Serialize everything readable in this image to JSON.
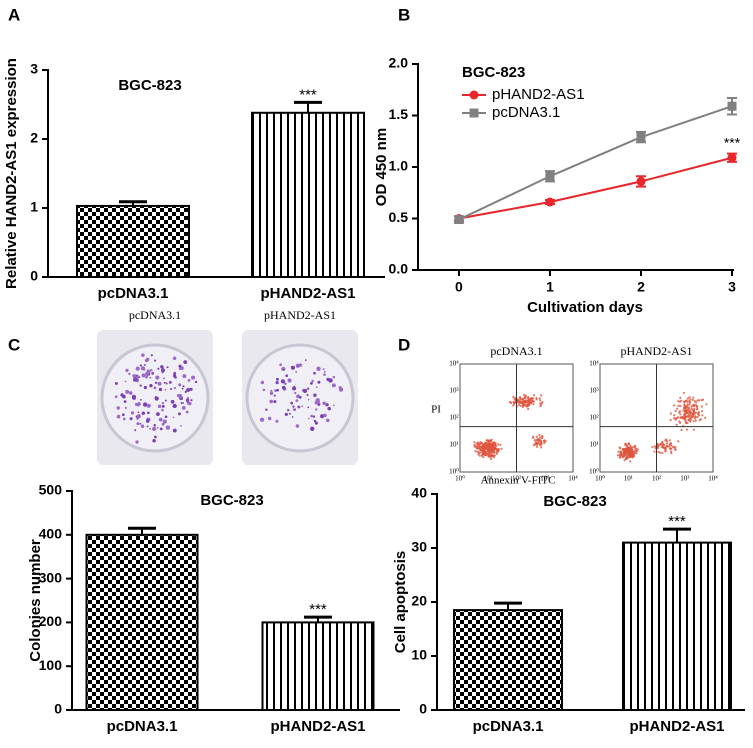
{
  "panel_labels": [
    "A",
    "B",
    "C",
    "D"
  ],
  "chart_data": [
    {
      "type": "bar",
      "title": "BGC-823",
      "y_label": "Relative HAND2-AS1 expression",
      "categories": [
        "pcDNA3.1",
        "pHAND2-AS1"
      ],
      "values": [
        1.03,
        2.38
      ],
      "errors": [
        0.06,
        0.15
      ],
      "value_annotations": [
        null,
        "***"
      ],
      "patterns": [
        "checker",
        "vertical-lines"
      ],
      "color": "#000000",
      "ylim": [
        0,
        3
      ],
      "yticks": [
        0,
        1,
        2,
        3
      ]
    },
    {
      "type": "line",
      "legend_title": "BGC-823",
      "x_label": "Cultivation days",
      "y_label": "OD 450 nm",
      "x": [
        0,
        1,
        2,
        3
      ],
      "xlim": [
        -0.45,
        3
      ],
      "xticks": [
        0,
        1,
        2,
        3
      ],
      "ylim": [
        0,
        2
      ],
      "yticks": [
        {
          "value": 0,
          "label": "0.0"
        },
        0.5,
        {
          "value": 1,
          "label": "1.0"
        },
        1.5,
        {
          "value": 2,
          "label": "2.0"
        }
      ],
      "legend": "upper left",
      "series": [
        {
          "name": "pHAND2-AS1",
          "color": "#e8262b",
          "marker": "circle",
          "values": [
            0.5,
            0.66,
            0.86,
            1.09
          ],
          "errors": [
            0.02,
            0.02,
            0.05,
            0.04
          ],
          "value_annotations": [
            null,
            null,
            null,
            "***"
          ]
        },
        {
          "name": "pcDNA3.1",
          "color": "#808080",
          "marker": "square",
          "values": [
            0.49,
            0.91,
            1.29,
            1.59
          ],
          "errors": [
            0.03,
            0.05,
            0.05,
            0.08
          ],
          "value_annotations": [
            null,
            null,
            null,
            null
          ]
        }
      ]
    },
    {
      "type": "bar",
      "title": "BGC-823",
      "y_label": "Colonies number",
      "categories": [
        "pcDNA3.1",
        "pHAND2-AS1"
      ],
      "values": [
        400,
        200
      ],
      "errors": [
        15,
        12
      ],
      "value_annotations": [
        null,
        "***"
      ],
      "patterns": [
        "checker",
        "vertical-lines"
      ],
      "color": "#000000",
      "ylim": [
        0,
        500
      ],
      "yticks": [
        0,
        100,
        200,
        300,
        400,
        500
      ]
    },
    {
      "type": "bar",
      "title": "BGC-823",
      "y_label": "Cell apoptosis",
      "categories": [
        "pcDNA3.1",
        "pHAND2-AS1"
      ],
      "values": [
        18.5,
        31
      ],
      "errors": [
        1.3,
        2.5
      ],
      "value_annotations": [
        null,
        "***"
      ],
      "patterns": [
        "checker",
        "vertical-lines"
      ],
      "color": "#000000",
      "ylim": [
        0,
        40
      ],
      "yticks": [
        0,
        10,
        20,
        30,
        40
      ]
    }
  ],
  "colony_images": {
    "labels": [
      "pcDNA3.1",
      "pHAND2-AS1"
    ]
  },
  "flow_images": {
    "labels": [
      "pcDNA3.1",
      "pHAND2-AS1"
    ],
    "y_label": "PI",
    "x_label": "Annexin V-FITC",
    "tick_labels": [
      "10⁰",
      "10¹",
      "10²",
      "10³",
      "10⁴"
    ]
  }
}
